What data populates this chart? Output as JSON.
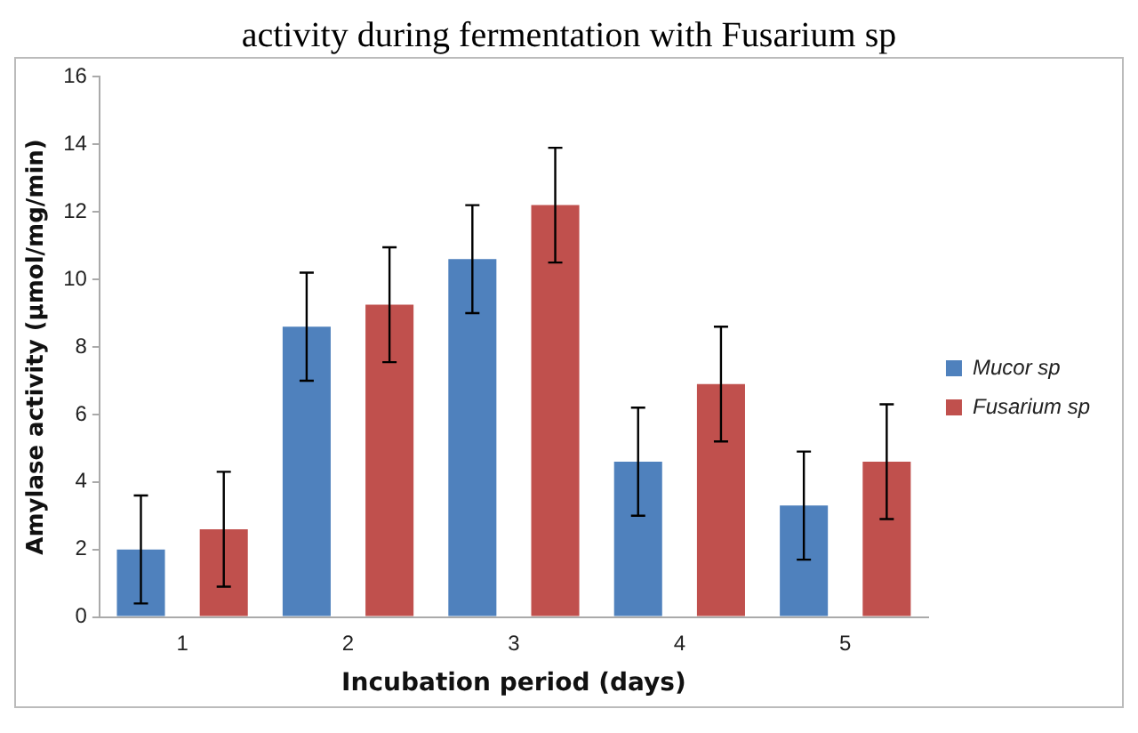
{
  "chart_data": {
    "type": "bar",
    "title": "activity during fermentation with Fusarium sp",
    "xlabel": "Incubation period (days)",
    "ylabel": "Amylase activity (µmol/mg/min)",
    "categories": [
      "1",
      "2",
      "3",
      "4",
      "5"
    ],
    "series": [
      {
        "name": "Mucor sp",
        "color": "#4f81bd",
        "values": [
          2.0,
          8.6,
          10.6,
          4.6,
          3.3
        ],
        "errors": [
          1.6,
          1.6,
          1.6,
          1.6,
          1.6
        ]
      },
      {
        "name": "Fusarium sp",
        "color": "#c0504d",
        "values": [
          2.6,
          9.25,
          12.2,
          6.9,
          4.6
        ],
        "errors": [
          1.7,
          1.7,
          1.7,
          1.7,
          1.7
        ]
      }
    ],
    "ylim": [
      0,
      16
    ],
    "yticks": [
      0,
      2,
      4,
      6,
      8,
      10,
      12,
      14,
      16
    ],
    "grid": false,
    "legend": "right"
  }
}
